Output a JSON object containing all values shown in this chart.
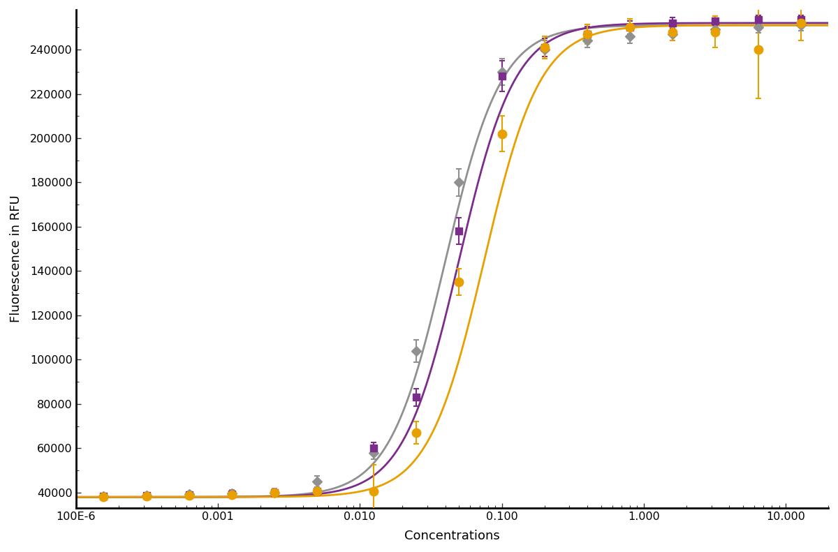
{
  "background_color": "#ffffff",
  "xlabel": "Concentrations",
  "ylabel": "Fluorescence in RFU",
  "xmin": 0.0001,
  "xmax": 20.0,
  "ymin": 33000,
  "ymax": 258000,
  "yticks": [
    40000,
    60000,
    80000,
    100000,
    120000,
    140000,
    160000,
    180000,
    200000,
    220000,
    240000
  ],
  "xtick_labels": [
    "100E-6",
    "0.001",
    "0.010",
    "0.100",
    "1.000",
    "10.000"
  ],
  "xtick_positions": [
    0.0001,
    0.001,
    0.01,
    0.1,
    1.0,
    10.0
  ],
  "series": [
    {
      "name": "gray_diamond",
      "color": "#909090",
      "marker": "D",
      "markersize": 7,
      "x": [
        0.000156,
        0.000313,
        0.000625,
        0.00125,
        0.0025,
        0.005,
        0.0125,
        0.025,
        0.05,
        0.1,
        0.2,
        0.4,
        0.8,
        1.6,
        3.2,
        6.4,
        12.8
      ],
      "y": [
        38500,
        38800,
        39200,
        39800,
        40000,
        45000,
        58000,
        104000,
        180000,
        230000,
        240000,
        244000,
        246000,
        247000,
        249000,
        250000,
        251000
      ],
      "yerr": [
        800,
        800,
        1200,
        1500,
        1800,
        2500,
        3000,
        5000,
        6000,
        6000,
        4000,
        3000,
        3000,
        3000,
        2500,
        2500,
        2500
      ],
      "ec50": 0.04,
      "hill": 2.2,
      "bottom": 38000,
      "top": 251000
    },
    {
      "name": "purple_square",
      "color": "#7b2d8b",
      "marker": "s",
      "markersize": 7,
      "x": [
        0.000156,
        0.000313,
        0.000625,
        0.00125,
        0.0025,
        0.005,
        0.0125,
        0.025,
        0.05,
        0.1,
        0.2,
        0.4,
        0.8,
        1.6,
        3.2,
        6.4,
        12.8
      ],
      "y": [
        38500,
        38800,
        39000,
        39500,
        40000,
        40500,
        60000,
        83000,
        158000,
        228000,
        241000,
        247000,
        250000,
        252000,
        253000,
        253500,
        253500
      ],
      "yerr": [
        700,
        700,
        900,
        1100,
        1400,
        1800,
        2500,
        4000,
        6000,
        7000,
        4000,
        3500,
        3000,
        2500,
        2000,
        2000,
        2000
      ],
      "ec50": 0.05,
      "hill": 2.2,
      "bottom": 38000,
      "top": 252000
    },
    {
      "name": "orange_circle",
      "color": "#e8a000",
      "marker": "o",
      "markersize": 9,
      "x": [
        0.000156,
        0.000313,
        0.000625,
        0.00125,
        0.0025,
        0.005,
        0.0125,
        0.025,
        0.05,
        0.1,
        0.2,
        0.4,
        0.8,
        1.6,
        3.2,
        6.4,
        12.8
      ],
      "y": [
        38000,
        38500,
        38800,
        39000,
        40000,
        40500,
        40500,
        67000,
        135000,
        202000,
        241000,
        247000,
        250000,
        248000,
        248000,
        240000,
        252000
      ],
      "yerr": [
        900,
        700,
        900,
        1100,
        1400,
        1800,
        12000,
        5000,
        6000,
        8000,
        5000,
        4500,
        4000,
        4000,
        7000,
        22000,
        8000
      ],
      "ec50": 0.075,
      "hill": 2.2,
      "bottom": 38000,
      "top": 251000
    }
  ]
}
